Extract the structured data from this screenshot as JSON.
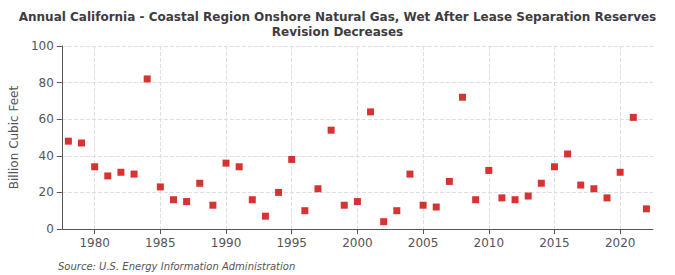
{
  "chart_data": {
    "type": "scatter",
    "title": "Annual California - Coastal Region Onshore Natural Gas, Wet After Lease Separation Reserves\nRevision Decreases",
    "ylabel": "Billion Cubic Feet",
    "source": "Source: U.S. Energy Information Administration",
    "color": "#cc0000",
    "marker": "square",
    "grid": true,
    "xlim": [
      1977.5,
      2022.5
    ],
    "xticks": [
      1980,
      1985,
      1990,
      1995,
      2000,
      2005,
      2010,
      2015,
      2020
    ],
    "ylim": [
      0,
      100
    ],
    "yticks": [
      0,
      20,
      40,
      60,
      80,
      100
    ],
    "x": [
      1978,
      1979,
      1980,
      1981,
      1982,
      1983,
      1984,
      1985,
      1986,
      1987,
      1988,
      1989,
      1990,
      1991,
      1992,
      1993,
      1994,
      1995,
      1996,
      1997,
      1998,
      1999,
      2000,
      2001,
      2002,
      2003,
      2004,
      2005,
      2006,
      2007,
      2008,
      2009,
      2010,
      2011,
      2012,
      2013,
      2014,
      2015,
      2016,
      2017,
      2018,
      2019,
      2020,
      2021,
      2022
    ],
    "values": [
      48,
      47,
      34,
      29,
      31,
      30,
      82,
      23,
      16,
      15,
      25,
      13,
      36,
      34,
      16,
      7,
      20,
      38,
      10,
      22,
      54,
      13,
      15,
      64,
      4,
      10,
      30,
      13,
      12,
      26,
      72,
      16,
      32,
      17,
      16,
      18,
      25,
      34,
      41,
      24,
      22,
      17,
      31,
      61,
      11
    ]
  }
}
